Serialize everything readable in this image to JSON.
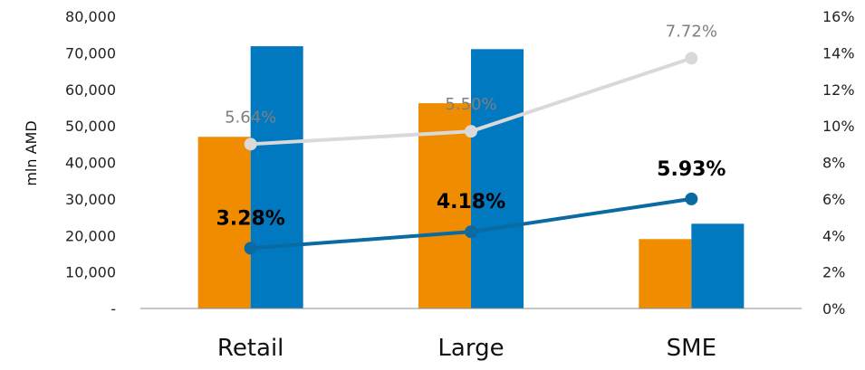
{
  "chart_data": {
    "type": "bar",
    "categories": [
      "Retail",
      "Large",
      "SME"
    ],
    "ylabel": "mln AMD",
    "ylim": [
      0,
      80000
    ],
    "y_ticks": [
      "-",
      "10,000",
      "20,000",
      "30,000",
      "40,000",
      "50,000",
      "60,000",
      "70,000",
      "80,000"
    ],
    "y2lim": [
      0,
      16
    ],
    "y2_ticks": [
      "0%",
      "2%",
      "4%",
      "6%",
      "8%",
      "10%",
      "12%",
      "14%",
      "16%"
    ],
    "grid": false,
    "bar_series": [
      {
        "color": "#F08C00",
        "values": [
          47000,
          56200,
          19000
        ]
      },
      {
        "color": "#0079C1",
        "values": [
          71800,
          71000,
          23200
        ]
      }
    ],
    "line_series": [
      {
        "color": "#D9D9D9",
        "axis": "right",
        "values": [
          9.0,
          9.7,
          13.7
        ],
        "labels": [
          "5.64%",
          "5.50%",
          "7.72%"
        ],
        "label_style": "grey"
      },
      {
        "color": "#0A6AA1",
        "axis": "right",
        "values": [
          3.3,
          4.2,
          6.0
        ],
        "labels": [
          "3.28%",
          "4.18%",
          "5.93%"
        ],
        "label_style": "bold"
      }
    ]
  }
}
